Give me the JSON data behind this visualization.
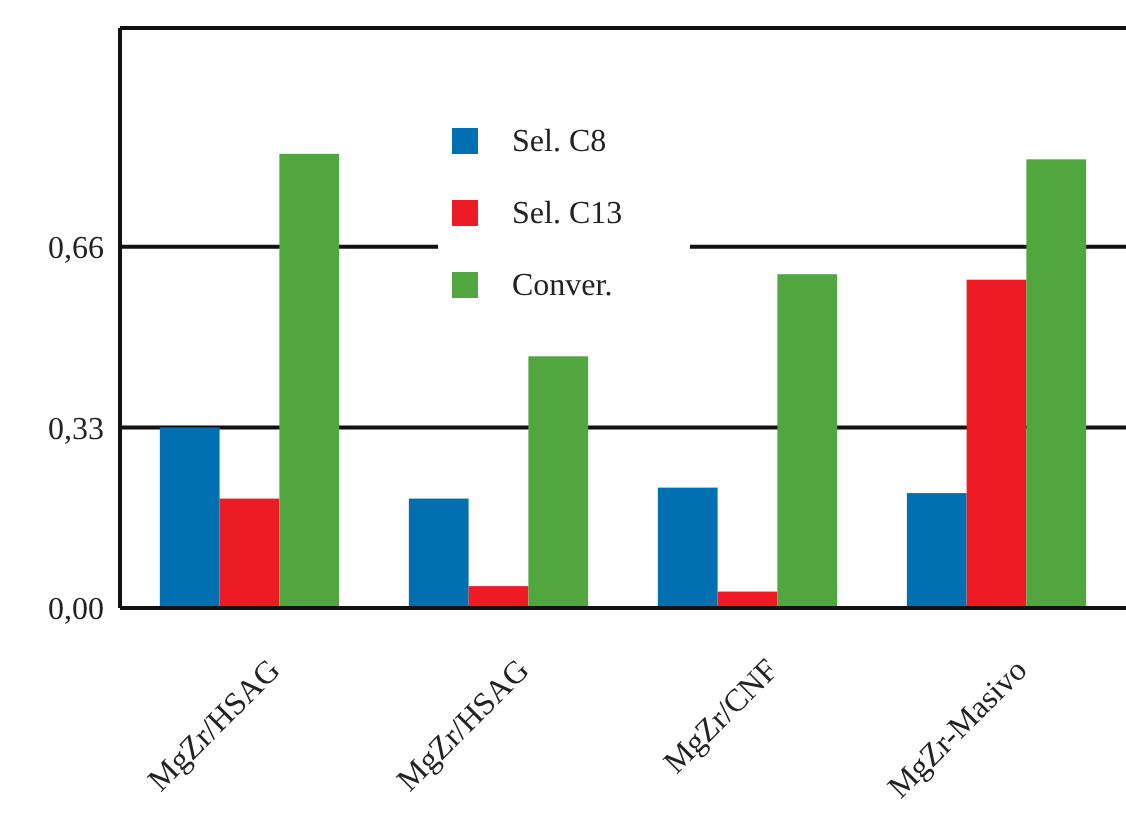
{
  "chart_data": {
    "type": "bar",
    "categories": [
      "MgZr/HSAG",
      "MgZr/HSAG",
      "MgZr/CNF",
      "MgZr-Masivo"
    ],
    "series": [
      {
        "name": "Sel. C8",
        "color": "#0070b0",
        "values": [
          0.33,
          0.2,
          0.22,
          0.21
        ]
      },
      {
        "name": "Sel. C13",
        "color": "#ed1c24",
        "values": [
          0.2,
          0.04,
          0.03,
          0.6
        ]
      },
      {
        "name": "Conver.",
        "color": "#52a63f",
        "values": [
          0.83,
          0.46,
          0.61,
          0.82
        ]
      }
    ],
    "ylim": [
      0,
      1.06
    ],
    "yticks": [
      {
        "value": 0,
        "label": "0,00"
      },
      {
        "value": 0.33,
        "label": "0,33"
      },
      {
        "value": 0.66,
        "label": "0,66"
      }
    ],
    "grid": "y",
    "legend": "top"
  }
}
